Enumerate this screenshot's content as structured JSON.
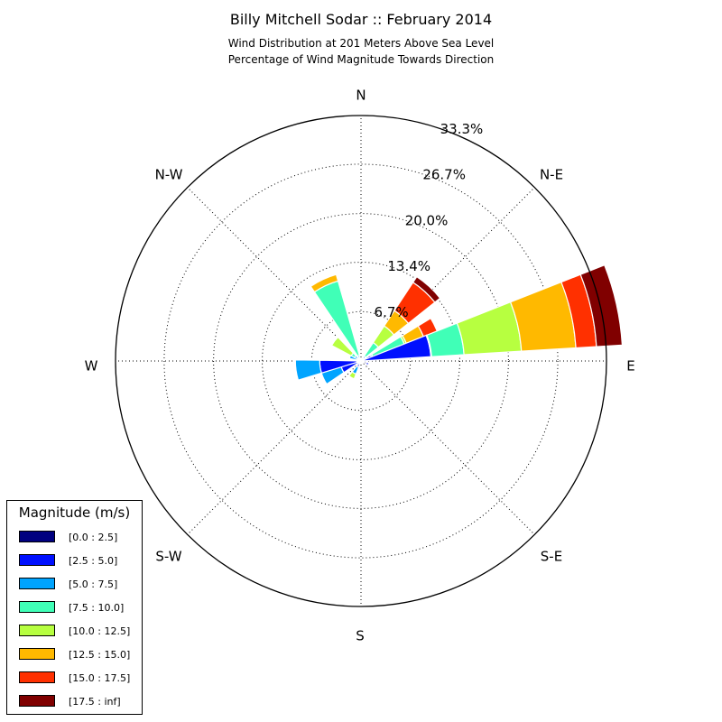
{
  "title": "Billy Mitchell Sodar :: February 2014",
  "subtitle_line1": "Wind Distribution at 201 Meters Above Sea Level",
  "subtitle_line2": "Percentage of Wind Magnitude Towards Direction",
  "chart_data": {
    "type": "windrose",
    "directions": [
      "N",
      "N-E",
      "E",
      "S-E",
      "S",
      "S-W",
      "W",
      "N-W"
    ],
    "rmax": 33.3,
    "rings": [
      6.7,
      13.4,
      20.0,
      26.7,
      33.3
    ],
    "ring_labels": [
      "6.7%",
      "13.4%",
      "20.0%",
      "26.7%",
      "33.3%"
    ],
    "grid": true,
    "legend_title": "Magnitude (m/s)",
    "legend_position": "lower-left",
    "bins": [
      {
        "label": "[0.0 : 2.5]",
        "color": "#000080"
      },
      {
        "label": "[2.5 : 5.0]",
        "color": "#0010ff"
      },
      {
        "label": "[5.0 : 7.5]",
        "color": "#00a4ff"
      },
      {
        "label": "[7.5 : 10.0]",
        "color": "#40ffb7"
      },
      {
        "label": "[10.0 : 12.5]",
        "color": "#b7ff40"
      },
      {
        "label": "[12.5 : 15.0]",
        "color": "#ffb900"
      },
      {
        "label": "[15.0 : 17.5]",
        "color": "#ff3000"
      },
      {
        "label": "[17.5 : inf]",
        "color": "#800000"
      }
    ],
    "sectors": [
      {
        "direction_deg": 42.5,
        "cumulative": [
          0.2,
          0.5,
          0.8,
          3.0,
          5.7,
          8.2,
          12.8,
          13.7
        ]
      },
      {
        "direction_deg": 67.5,
        "cumulative": [
          0.1,
          1.5,
          1.7,
          6.3,
          6.6,
          9.1,
          11.1,
          11.2
        ]
      },
      {
        "direction_deg": 77.5,
        "cumulative": [
          0.1,
          9.5,
          9.6,
          14.0,
          21.8,
          29.2,
          32.0,
          35.5
        ]
      },
      {
        "direction_deg": 112.5,
        "cumulative": [
          0.8,
          1.1,
          1.2,
          1.3,
          1.4,
          1.4,
          1.4,
          1.4
        ]
      },
      {
        "direction_deg": 210,
        "cumulative": [
          0.4,
          0.9,
          1.9,
          1.9,
          2.6,
          2.6,
          2.6,
          2.6
        ]
      },
      {
        "direction_deg": 245,
        "cumulative": [
          0.5,
          2.8,
          5.6,
          5.6,
          5.6,
          5.6,
          5.6,
          5.6
        ]
      },
      {
        "direction_deg": 262,
        "cumulative": [
          0.6,
          5.6,
          8.9,
          8.9,
          8.9,
          8.9,
          8.9,
          8.9
        ]
      },
      {
        "direction_deg": 292,
        "cumulative": [
          0.2,
          0.4,
          1.6,
          1.6,
          1.6,
          1.6,
          1.6,
          1.6
        ]
      },
      {
        "direction_deg": 307,
        "cumulative": [
          0.2,
          0.6,
          1.0,
          1.5,
          4.5,
          4.6,
          4.6,
          4.6
        ]
      },
      {
        "direction_deg": 335,
        "cumulative": [
          0.2,
          0.5,
          0.8,
          11.3,
          11.3,
          12.2,
          12.2,
          12.2
        ]
      }
    ]
  }
}
